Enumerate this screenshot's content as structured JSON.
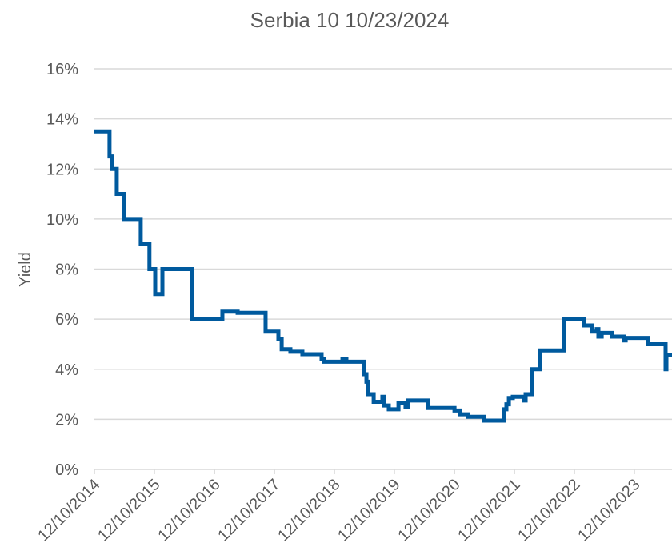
{
  "chart_data": {
    "type": "line",
    "title": "Serbia 10 10/23/2024",
    "y_label": "Yield",
    "x": [
      "12/10/2014",
      "03/12/2015",
      "03/12/2015",
      "03/27/2015",
      "03/27/2015",
      "04/25/2015",
      "04/25/2015",
      "06/08/2015",
      "06/08/2015",
      "09/18/2015",
      "09/18/2015",
      "11/10/2015",
      "11/10/2015",
      "12/15/2015",
      "12/15/2015",
      "01/28/2016",
      "01/28/2016",
      "07/26/2016",
      "07/26/2016",
      "01/27/2017",
      "01/27/2017",
      "04/30/2017",
      "04/30/2017",
      "10/17/2017",
      "10/17/2017",
      "01/03/2018",
      "01/03/2018",
      "01/23/2018",
      "01/23/2018",
      "03/17/2018",
      "03/17/2018",
      "05/29/2018",
      "05/29/2018",
      "09/23/2018",
      "09/23/2018",
      "10/08/2018",
      "10/08/2018",
      "01/28/2019",
      "01/28/2019",
      "02/21/2019",
      "02/21/2019",
      "06/08/2019",
      "06/08/2019",
      "06/23/2019",
      "06/23/2019",
      "07/03/2019",
      "07/03/2019",
      "08/06/2019",
      "08/06/2019",
      "09/28/2019",
      "09/28/2019",
      "10/08/2019",
      "10/08/2019",
      "11/06/2019",
      "11/06/2019",
      "01/04/2020",
      "01/04/2020",
      "02/16/2020",
      "02/16/2020",
      "03/02/2020",
      "03/02/2020",
      "07/02/2020",
      "07/02/2020",
      "12/10/2020",
      "12/10/2020",
      "01/13/2021",
      "01/13/2021",
      "03/02/2021",
      "03/02/2021",
      "06/08/2021",
      "06/08/2021",
      "10/07/2021",
      "10/07/2021",
      "10/22/2021",
      "10/22/2021",
      "11/06/2021",
      "11/06/2021",
      "11/30/2021",
      "11/30/2021",
      "02/06/2022",
      "02/06/2022",
      "02/16/2022",
      "02/16/2022",
      "03/27/2022",
      "03/27/2022",
      "05/15/2022",
      "05/15/2022",
      "10/08/2022",
      "10/08/2022",
      "02/06/2023",
      "02/06/2023",
      "03/27/2023",
      "03/27/2023",
      "04/25/2023",
      "04/25/2023",
      "05/05/2023",
      "05/05/2023",
      "05/25/2023",
      "05/25/2023",
      "07/27/2023",
      "07/27/2023",
      "10/08/2023",
      "10/08/2023",
      "10/18/2023",
      "10/18/2023",
      "03/02/2024",
      "03/02/2024",
      "06/17/2024",
      "06/17/2024",
      "06/22/2024",
      "06/22/2024",
      "07/26/2024"
    ],
    "series": [
      {
        "color": "#005a9e",
        "values": [
          13.5,
          13.5,
          12.5,
          12.5,
          12,
          12,
          11,
          11,
          10,
          10,
          9,
          9,
          8,
          8,
          7,
          7,
          8,
          8,
          6,
          6,
          6.3,
          6.3,
          6.25,
          6.25,
          5.5,
          5.5,
          5.2,
          5.2,
          4.8,
          4.8,
          4.7,
          4.7,
          4.6,
          4.6,
          4.4,
          4.4,
          4.3,
          4.3,
          4.4,
          4.4,
          4.3,
          4.3,
          3.8,
          3.8,
          3.5,
          3.5,
          3,
          3,
          2.7,
          2.7,
          2.9,
          2.9,
          2.55,
          2.55,
          2.4,
          2.4,
          2.65,
          2.65,
          2.5,
          2.5,
          2.75,
          2.75,
          2.45,
          2.45,
          2.35,
          2.35,
          2.2,
          2.2,
          2.1,
          2.1,
          1.95,
          1.95,
          2.4,
          2.4,
          2.6,
          2.6,
          2.85,
          2.85,
          2.9,
          2.9,
          2.75,
          2.75,
          3,
          3,
          4,
          4,
          4.75,
          4.75,
          6,
          6,
          5.75,
          5.75,
          5.5,
          5.5,
          5.6,
          5.6,
          5.3,
          5.3,
          5.45,
          5.45,
          5.3,
          5.3,
          5.15,
          5.15,
          5.25,
          5.25,
          5,
          5,
          4,
          4,
          4.55,
          4.55
        ]
      }
    ],
    "xlim": [
      "12/10/2014",
      "07/26/2024"
    ],
    "xticks": [
      "12/10/2014",
      "12/10/2015",
      "12/10/2016",
      "12/10/2017",
      "12/10/2018",
      "12/10/2019",
      "12/10/2020",
      "12/10/2021",
      "12/10/2022",
      "12/10/2023"
    ],
    "ylim": [
      0,
      16
    ],
    "yticks": [
      {
        "value": 0,
        "label": "0%"
      },
      {
        "value": 2,
        "label": "2%"
      },
      {
        "value": 4,
        "label": "4%"
      },
      {
        "value": 6,
        "label": "6%"
      },
      {
        "value": 8,
        "label": "8%"
      },
      {
        "value": 10,
        "label": "10%"
      },
      {
        "value": 12,
        "label": "12%"
      },
      {
        "value": 14,
        "label": "14%"
      },
      {
        "value": 16,
        "label": "16%"
      }
    ],
    "grid": true
  }
}
